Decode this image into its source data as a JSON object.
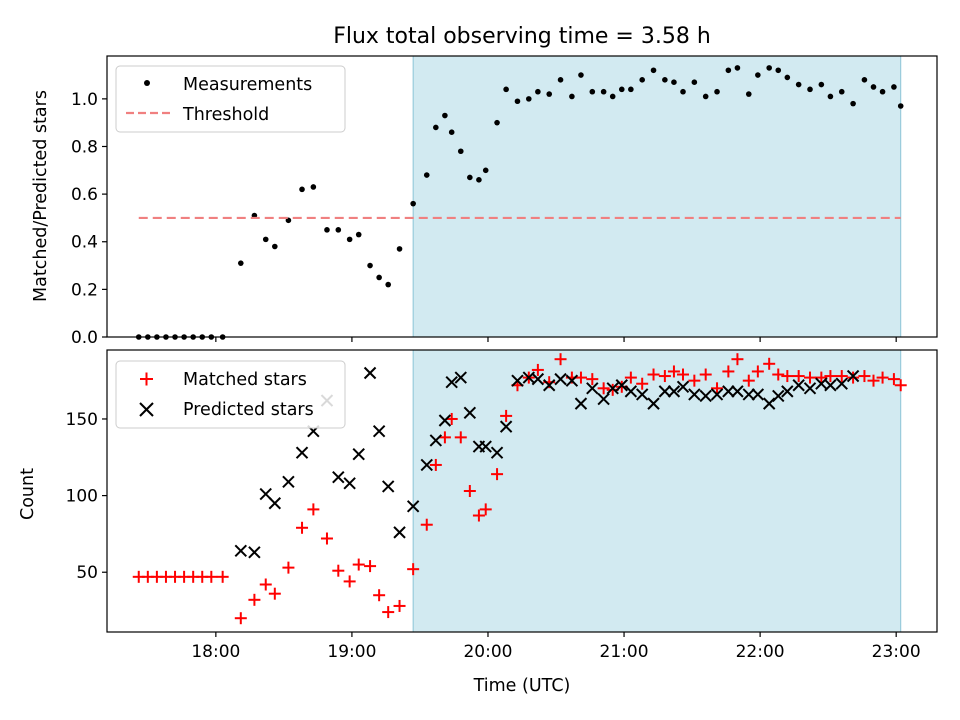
{
  "chart_data": [
    {
      "type": "scatter",
      "title": "Flux total observing time = 3.58 h",
      "xlabel": "",
      "ylabel": "Matched/Predicted stars",
      "xlim": [
        "17:12",
        "23:18"
      ],
      "ylim": [
        0,
        1.18
      ],
      "yticks": [
        0.0,
        0.2,
        0.4,
        0.6,
        0.8,
        1.0
      ],
      "ytick_labels": [
        "0.0",
        "0.2",
        "0.4",
        "0.6",
        "0.8",
        "1.0"
      ],
      "legend": {
        "position": "top-left",
        "entries": [
          "Measurements",
          "Threshold"
        ]
      },
      "series": [
        {
          "name": "Measurements",
          "marker": "dot",
          "color": "#000000",
          "x": [
            "17:26",
            "17:30",
            "17:34",
            "17:38",
            "17:42",
            "17:46",
            "17:50",
            "17:54",
            "17:58",
            "18:03",
            "18:11",
            "18:17",
            "18:22",
            "18:26",
            "18:32",
            "18:38",
            "18:43",
            "18:49",
            "18:54",
            "18:59",
            "19:03",
            "19:08",
            "19:12",
            "19:16",
            "19:21",
            "19:27",
            "19:33",
            "19:37",
            "19:41",
            "19:44",
            "19:48",
            "19:52",
            "19:56",
            "19:59",
            "20:04",
            "20:08",
            "20:13",
            "20:18",
            "20:22",
            "20:27",
            "20:32",
            "20:37",
            "20:41",
            "20:46",
            "20:51",
            "20:55",
            "20:59",
            "21:03",
            "21:08",
            "21:13",
            "21:18",
            "21:22",
            "21:26",
            "21:31",
            "21:36",
            "21:41",
            "21:46",
            "21:50",
            "21:55",
            "21:59",
            "22:04",
            "22:08",
            "22:12",
            "22:17",
            "22:22",
            "22:27",
            "22:31",
            "22:36",
            "22:41",
            "22:46",
            "22:50",
            "22:54",
            "22:59",
            "23:02"
          ],
          "y": [
            0,
            0,
            0,
            0,
            0,
            0,
            0,
            0,
            0,
            0,
            0.31,
            0.51,
            0.41,
            0.38,
            0.49,
            0.62,
            0.63,
            0.45,
            0.45,
            0.41,
            0.43,
            0.3,
            0.25,
            0.22,
            0.37,
            0.56,
            0.68,
            0.88,
            0.93,
            0.86,
            0.78,
            0.67,
            0.66,
            0.7,
            0.9,
            1.04,
            0.99,
            1.0,
            1.03,
            1.02,
            1.08,
            1.01,
            1.1,
            1.03,
            1.03,
            1.01,
            1.04,
            1.04,
            1.08,
            1.12,
            1.08,
            1.07,
            1.03,
            1.07,
            1.01,
            1.03,
            1.12,
            1.13,
            1.02,
            1.1,
            1.13,
            1.12,
            1.09,
            1.06,
            1.04,
            1.06,
            1.01,
            1.03,
            0.98,
            1.08,
            1.05,
            1.03,
            1.05,
            0.97
          ]
        },
        {
          "name": "Threshold",
          "style": "dashed",
          "color": "#f08080",
          "x": [
            "17:26",
            "23:02"
          ],
          "y": [
            0.5,
            0.5
          ]
        }
      ],
      "shaded_region": {
        "x": [
          "19:27",
          "23:02"
        ],
        "color": "#add8e6"
      }
    },
    {
      "type": "scatter",
      "title": "",
      "xlabel": "Time (UTC)",
      "ylabel": "Count",
      "xlim": [
        "17:12",
        "23:18"
      ],
      "ylim": [
        11,
        195
      ],
      "xticks": [
        "18:00",
        "19:00",
        "20:00",
        "21:00",
        "22:00",
        "23:00"
      ],
      "yticks": [
        50,
        100,
        150
      ],
      "ytick_labels": [
        "50",
        "100",
        "150"
      ],
      "legend": {
        "position": "top-left",
        "entries": [
          "Matched stars",
          "Predicted stars"
        ]
      },
      "series": [
        {
          "name": "Matched stars",
          "marker": "plus",
          "color": "#ff0000",
          "x": [
            "17:26",
            "17:30",
            "17:34",
            "17:38",
            "17:42",
            "17:46",
            "17:50",
            "17:54",
            "17:58",
            "18:03",
            "18:11",
            "18:17",
            "18:22",
            "18:26",
            "18:32",
            "18:38",
            "18:43",
            "18:49",
            "18:54",
            "18:59",
            "19:03",
            "19:08",
            "19:12",
            "19:16",
            "19:21",
            "19:27",
            "19:33",
            "19:37",
            "19:41",
            "19:44",
            "19:48",
            "19:52",
            "19:56",
            "19:59",
            "20:04",
            "20:08",
            "20:13",
            "20:18",
            "20:22",
            "20:27",
            "20:32",
            "20:37",
            "20:41",
            "20:46",
            "20:51",
            "20:55",
            "20:59",
            "21:03",
            "21:08",
            "21:13",
            "21:18",
            "21:22",
            "21:26",
            "21:31",
            "21:36",
            "21:41",
            "21:46",
            "21:50",
            "21:55",
            "21:59",
            "22:04",
            "22:08",
            "22:12",
            "22:17",
            "22:22",
            "22:27",
            "22:31",
            "22:36",
            "22:41",
            "22:46",
            "22:50",
            "22:54",
            "22:59",
            "23:02"
          ],
          "y": [
            47,
            47,
            47,
            47,
            47,
            47,
            47,
            47,
            47,
            47,
            20,
            32,
            42,
            36,
            53,
            79,
            91,
            72,
            51,
            44,
            55,
            54,
            35,
            24,
            28,
            52,
            81,
            120,
            138,
            150,
            138,
            103,
            87,
            91,
            114,
            152,
            172,
            177,
            182,
            174,
            189,
            177,
            177,
            176,
            170,
            169,
            171,
            177,
            173,
            179,
            178,
            181,
            179,
            175,
            179,
            170,
            181,
            189,
            175,
            181,
            186,
            179,
            178,
            178,
            177,
            177,
            178,
            178,
            177,
            178,
            175,
            177,
            176,
            172
          ]
        },
        {
          "name": "Predicted stars",
          "marker": "x",
          "color": "#000000",
          "x": [
            "17:26",
            "17:30",
            "17:34",
            "17:38",
            "17:42",
            "17:46",
            "17:50",
            "17:54",
            "17:58",
            "18:03",
            "18:11",
            "18:17",
            "18:22",
            "18:26",
            "18:32",
            "18:38",
            "18:43",
            "18:49",
            "18:54",
            "18:59",
            "19:03",
            "19:08",
            "19:12",
            "19:16",
            "19:21",
            "19:27",
            "19:33",
            "19:37",
            "19:41",
            "19:44",
            "19:48",
            "19:52",
            "19:56",
            "19:59",
            "20:04",
            "20:08",
            "20:13",
            "20:18",
            "20:22",
            "20:27",
            "20:32",
            "20:37",
            "20:41",
            "20:46",
            "20:51",
            "20:55",
            "20:59",
            "21:03",
            "21:08",
            "21:13",
            "21:18",
            "21:22",
            "21:26",
            "21:31",
            "21:36",
            "21:41",
            "21:46",
            "21:50",
            "21:55",
            "21:59",
            "22:04",
            "22:08",
            "22:12",
            "22:17",
            "22:22",
            "22:27",
            "22:31",
            "22:36",
            "22:41",
            "22:46",
            "22:50",
            "22:54",
            "22:59",
            "23:02"
          ],
          "y": [
            null,
            null,
            null,
            null,
            null,
            null,
            null,
            null,
            null,
            null,
            64,
            63,
            101,
            95,
            109,
            128,
            142,
            162,
            112,
            108,
            127,
            180,
            142,
            106,
            76,
            93,
            120,
            136,
            149,
            174,
            177,
            154,
            132,
            132,
            128,
            145,
            175,
            177,
            176,
            172,
            176,
            175,
            160,
            170,
            163,
            170,
            172,
            168,
            166,
            160,
            168,
            168,
            171,
            166,
            165,
            166,
            168,
            168,
            166,
            166,
            160,
            165,
            168,
            172,
            170,
            173,
            172,
            173,
            178,
            null,
            null,
            null,
            null,
            null
          ]
        }
      ],
      "shaded_region": {
        "x": [
          "19:27",
          "23:02"
        ],
        "color": "#add8e6"
      }
    }
  ]
}
